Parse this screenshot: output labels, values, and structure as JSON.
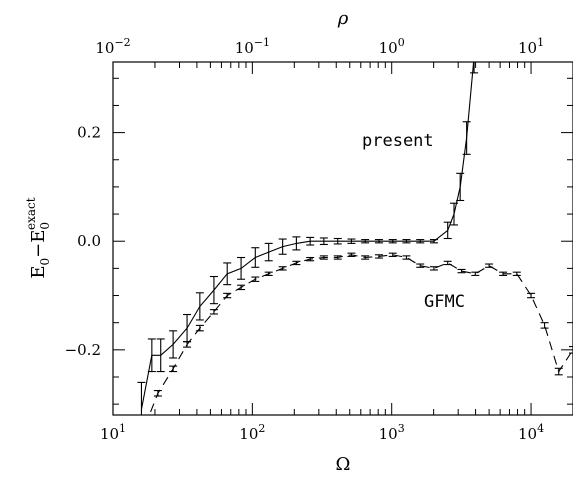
{
  "chart_data": {
    "type": "line",
    "title": "",
    "xlabel": "Ω",
    "top_xlabel": "ρ",
    "ylabel": {
      "main": "E",
      "sub": "0",
      "minus": "−E",
      "sub2": "0",
      "sup2": "exact"
    },
    "x_scale": "log",
    "xlim": [
      10,
      20000
    ],
    "ylim": [
      -0.32,
      0.33
    ],
    "top_x_scale": "log",
    "top_xlim": [
      0.01,
      20
    ],
    "grid": false,
    "x_ticks": [
      {
        "value": 10,
        "base": "10",
        "exp": "1"
      },
      {
        "value": 100,
        "base": "10",
        "exp": "2"
      },
      {
        "value": 1000,
        "base": "10",
        "exp": "3"
      },
      {
        "value": 10000,
        "base": "10",
        "exp": "4"
      }
    ],
    "top_x_ticks": [
      {
        "value": 0.01,
        "base": "10",
        "exp": "−2"
      },
      {
        "value": 0.1,
        "base": "10",
        "exp": "−1"
      },
      {
        "value": 1,
        "base": "10",
        "exp": "0"
      },
      {
        "value": 10,
        "base": "10",
        "exp": "1"
      }
    ],
    "y_ticks": [
      {
        "value": -0.2,
        "label": "−0.2"
      },
      {
        "value": 0.0,
        "label": "0.0"
      },
      {
        "value": 0.2,
        "label": "0.2"
      }
    ],
    "series": [
      {
        "name": "present",
        "style": "solid",
        "x": [
          16,
          19,
          22,
          27,
          34,
          42,
          53,
          66,
          83,
          105,
          131,
          165,
          207,
          260,
          326,
          410,
          514,
          645,
          810,
          1017,
          1276,
          1602,
          2010,
          2523,
          2800,
          3100,
          3450,
          3900
        ],
        "y": [
          -0.31,
          -0.21,
          -0.21,
          -0.19,
          -0.16,
          -0.12,
          -0.09,
          -0.06,
          -0.05,
          -0.03,
          -0.02,
          -0.01,
          -0.004,
          0.0,
          0.0,
          0.0,
          0.0,
          0.0,
          0.0,
          0.0,
          0.0,
          0.0,
          0.0,
          0.02,
          0.05,
          0.1,
          0.19,
          0.34
        ],
        "err": [
          0.05,
          0.03,
          0.03,
          0.025,
          0.025,
          0.025,
          0.025,
          0.02,
          0.02,
          0.018,
          0.016,
          0.014,
          0.012,
          0.007,
          0.006,
          0.005,
          0.004,
          0.003,
          0.003,
          0.003,
          0.003,
          0.003,
          0.003,
          0.015,
          0.02,
          0.025,
          0.03,
          0.03
        ]
      },
      {
        "name": "GFMC",
        "style": "dashed",
        "x": [
          17,
          21,
          27,
          34,
          42,
          53,
          66,
          83,
          105,
          131,
          165,
          207,
          260,
          326,
          410,
          514,
          645,
          810,
          1017,
          1276,
          1602,
          2010,
          2523,
          3170,
          3980,
          5000,
          6300,
          7900,
          10000,
          12500,
          15800,
          20000
        ],
        "y": [
          -0.34,
          -0.28,
          -0.235,
          -0.19,
          -0.16,
          -0.13,
          -0.1,
          -0.085,
          -0.07,
          -0.06,
          -0.05,
          -0.04,
          -0.033,
          -0.03,
          -0.03,
          -0.025,
          -0.03,
          -0.028,
          -0.025,
          -0.03,
          -0.045,
          -0.05,
          -0.04,
          -0.055,
          -0.06,
          -0.045,
          -0.06,
          -0.06,
          -0.1,
          -0.155,
          -0.24,
          -0.2
        ],
        "err": [
          0.005,
          0.005,
          0.005,
          0.005,
          0.005,
          0.004,
          0.004,
          0.004,
          0.004,
          0.003,
          0.003,
          0.003,
          0.003,
          0.003,
          0.003,
          0.003,
          0.003,
          0.003,
          0.003,
          0.003,
          0.003,
          0.003,
          0.003,
          0.003,
          0.003,
          0.003,
          0.003,
          0.003,
          0.004,
          0.005,
          0.006,
          0.006
        ]
      }
    ],
    "annotations": [
      {
        "text": "present",
        "series": "present"
      },
      {
        "text": "GFMC",
        "series": "GFMC"
      }
    ]
  }
}
